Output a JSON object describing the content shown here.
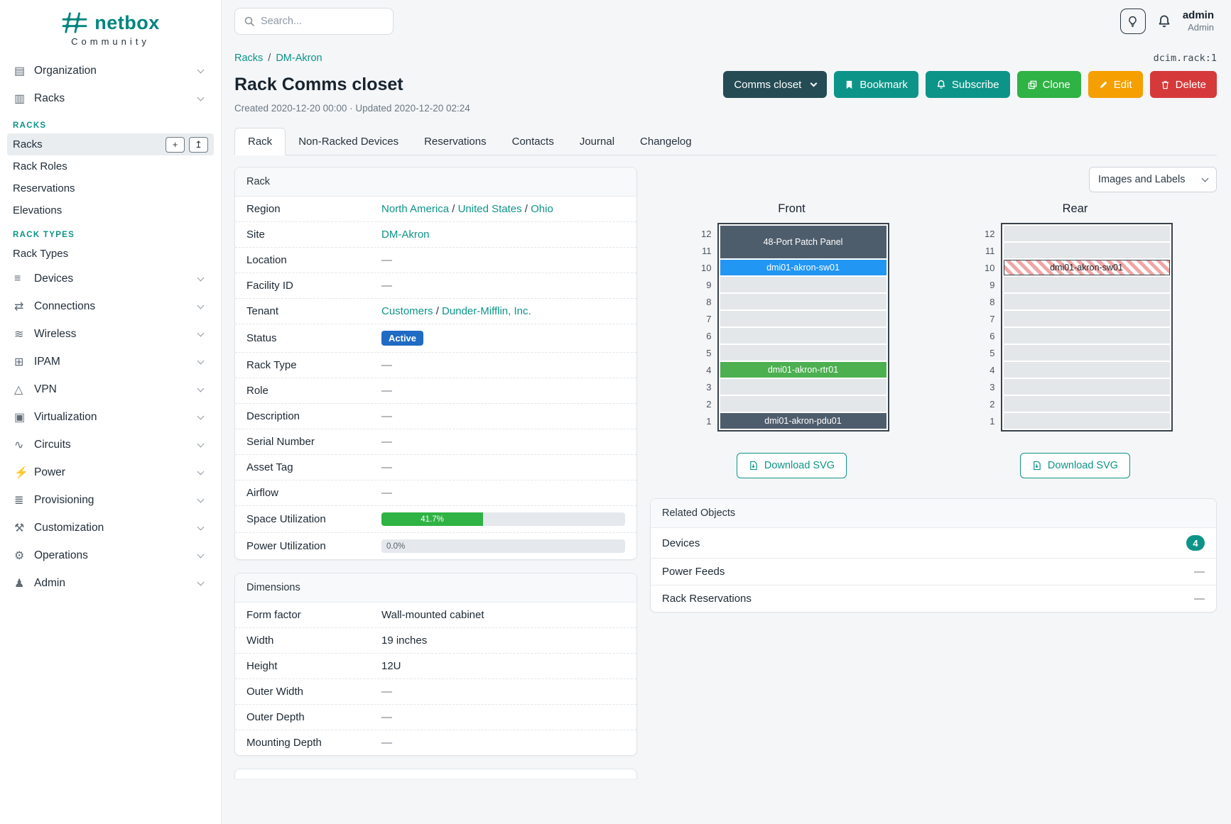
{
  "brand": {
    "name": "netbox",
    "tagline": "Community"
  },
  "theme": {
    "accent": "#0d9488",
    "logo_color": "#00857e"
  },
  "topbar": {
    "search_placeholder": "Search...",
    "username": "admin",
    "role": "Admin"
  },
  "sidebar": {
    "entries": [
      {
        "type": "group",
        "label": "Organization",
        "icon": "organization-icon",
        "glyph": "▤"
      },
      {
        "type": "group",
        "label": "Racks",
        "icon": "racks-icon",
        "glyph": "▥"
      },
      {
        "type": "header",
        "label": "RACKS"
      },
      {
        "type": "sub",
        "label": "Racks",
        "active": true,
        "buttons": [
          {
            "name": "add-button",
            "glyph": "+"
          },
          {
            "name": "import-button",
            "glyph": "↥"
          }
        ]
      },
      {
        "type": "sub",
        "label": "Rack Roles"
      },
      {
        "type": "sub",
        "label": "Reservations"
      },
      {
        "type": "sub",
        "label": "Elevations"
      },
      {
        "type": "header",
        "label": "RACK TYPES"
      },
      {
        "type": "sub",
        "label": "Rack Types"
      },
      {
        "type": "group",
        "label": "Devices",
        "icon": "devices-icon",
        "glyph": "≡"
      },
      {
        "type": "group",
        "label": "Connections",
        "icon": "connections-icon",
        "glyph": "⇄"
      },
      {
        "type": "group",
        "label": "Wireless",
        "icon": "wireless-icon",
        "glyph": "≋"
      },
      {
        "type": "group",
        "label": "IPAM",
        "icon": "ipam-icon",
        "glyph": "⊞"
      },
      {
        "type": "group",
        "label": "VPN",
        "icon": "vpn-icon",
        "glyph": "△"
      },
      {
        "type": "group",
        "label": "Virtualization",
        "icon": "virtualization-icon",
        "glyph": "▣"
      },
      {
        "type": "group",
        "label": "Circuits",
        "icon": "circuits-icon",
        "glyph": "∿"
      },
      {
        "type": "group",
        "label": "Power",
        "icon": "power-icon",
        "glyph": "⚡"
      },
      {
        "type": "group",
        "label": "Provisioning",
        "icon": "provisioning-icon",
        "glyph": "≣"
      },
      {
        "type": "group",
        "label": "Customization",
        "icon": "customization-icon",
        "glyph": "⚒"
      },
      {
        "type": "group",
        "label": "Operations",
        "icon": "operations-icon",
        "glyph": "⚙"
      },
      {
        "type": "group",
        "label": "Admin",
        "icon": "admin-icon",
        "glyph": "♟"
      }
    ]
  },
  "breadcrumb": {
    "links": [
      "Racks",
      "DM-Akron"
    ],
    "separator": "/"
  },
  "object_ref": "dcim.rack:1",
  "header": {
    "title": "Rack Comms closet",
    "meta": "Created 2020-12-20 00:00 · Updated 2020-12-20 02:24"
  },
  "actions": {
    "context_label": "Comms closet",
    "bookmark": "Bookmark",
    "subscribe": "Subscribe",
    "clone": "Clone",
    "edit": "Edit",
    "delete": "Delete"
  },
  "tabs": [
    {
      "label": "Rack",
      "active": true
    },
    {
      "label": "Non-Racked Devices"
    },
    {
      "label": "Reservations"
    },
    {
      "label": "Contacts"
    },
    {
      "label": "Journal"
    },
    {
      "label": "Changelog"
    }
  ],
  "rack_card": {
    "title": "Rack",
    "link_separator": "/",
    "rows": [
      {
        "label": "Region",
        "type": "links",
        "links": [
          "North America",
          "United States",
          "Ohio"
        ]
      },
      {
        "label": "Site",
        "type": "links",
        "links": [
          "DM-Akron"
        ]
      },
      {
        "label": "Location",
        "type": "dash",
        "value": "—"
      },
      {
        "label": "Facility ID",
        "type": "dash",
        "value": "—"
      },
      {
        "label": "Tenant",
        "type": "links",
        "links": [
          "Customers",
          "Dunder-Mifflin, Inc."
        ]
      },
      {
        "label": "Status",
        "type": "badge",
        "value": "Active",
        "color": "#206bc4"
      },
      {
        "label": "Rack Type",
        "type": "dash",
        "value": "—"
      },
      {
        "label": "Role",
        "type": "dash",
        "value": "—"
      },
      {
        "label": "Description",
        "type": "dash",
        "value": "—"
      },
      {
        "label": "Serial Number",
        "type": "dash",
        "value": "—"
      },
      {
        "label": "Asset Tag",
        "type": "dash",
        "value": "—"
      },
      {
        "label": "Airflow",
        "type": "dash",
        "value": "—"
      },
      {
        "label": "Space Utilization",
        "type": "progress",
        "percent": 41.7,
        "text": "41.7%",
        "fill": "#2fb344"
      },
      {
        "label": "Power Utilization",
        "type": "progress",
        "percent": 0,
        "text": "0.0%",
        "fill": "#2fb344"
      }
    ]
  },
  "dimensions_card": {
    "title": "Dimensions",
    "rows": [
      {
        "label": "Form factor",
        "type": "text",
        "value": "Wall-mounted cabinet"
      },
      {
        "label": "Width",
        "type": "text",
        "value": "19 inches"
      },
      {
        "label": "Height",
        "type": "text",
        "value": "12U"
      },
      {
        "label": "Outer Width",
        "type": "dash",
        "value": "—"
      },
      {
        "label": "Outer Depth",
        "type": "dash",
        "value": "—"
      },
      {
        "label": "Mounting Depth",
        "type": "dash",
        "value": "—"
      }
    ]
  },
  "elevations": {
    "toggle_label": "Images and Labels",
    "download_label": "Download SVG",
    "units": [
      12,
      11,
      10,
      9,
      8,
      7,
      6,
      5,
      4,
      3,
      2,
      1
    ],
    "views": [
      {
        "label": "Front",
        "devices": [
          {
            "name": "48-Port Patch Panel",
            "top_unit": 12,
            "u_height": 2,
            "style": "solid",
            "color": "#4e5d6c"
          },
          {
            "name": "dmi01-akron-sw01",
            "top_unit": 10,
            "u_height": 1,
            "style": "solid",
            "color": "#2196f3"
          },
          {
            "name": "dmi01-akron-rtr01",
            "top_unit": 4,
            "u_height": 1,
            "style": "solid",
            "color": "#4caf50"
          },
          {
            "name": "dmi01-akron-pdu01",
            "top_unit": 1,
            "u_height": 1,
            "style": "solid",
            "color": "#4e5d6c"
          }
        ]
      },
      {
        "label": "Rear",
        "devices": [
          {
            "name": "dmi01-akron-sw01",
            "top_unit": 10,
            "u_height": 1,
            "style": "striped",
            "color": "#efa6a6"
          }
        ]
      }
    ]
  },
  "related_card": {
    "title": "Related Objects",
    "rows": [
      {
        "label": "Devices",
        "badge": "4"
      },
      {
        "label": "Power Feeds",
        "value": "—"
      },
      {
        "label": "Rack Reservations",
        "value": "—"
      }
    ]
  }
}
